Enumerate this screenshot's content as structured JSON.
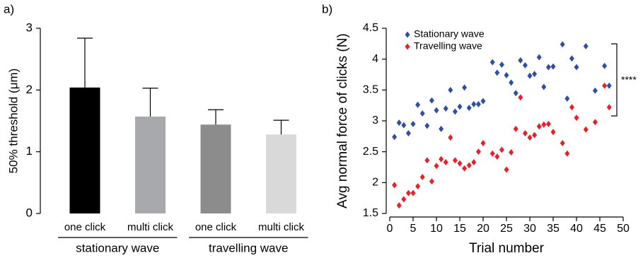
{
  "chart_data": [
    {
      "type": "bar",
      "panel_label": "a)",
      "ylabel": "50% threshold (μm)",
      "categories": [
        "one click",
        "multi click",
        "one click",
        "multi click"
      ],
      "group_labels": [
        "stationary wave",
        "travelling wave"
      ],
      "values": [
        2.04,
        1.57,
        1.44,
        1.28
      ],
      "errors": [
        0.8,
        0.46,
        0.24,
        0.23
      ],
      "colors": [
        "#000000",
        "#a7a9ac",
        "#8c8c8c",
        "#d9d9d9"
      ],
      "ylim": [
        0,
        3
      ],
      "yticks": [
        0,
        1,
        2,
        3
      ]
    },
    {
      "type": "scatter",
      "panel_label": "b)",
      "xlabel": "Trial number",
      "ylabel": "Avg normal force of clicks (N)",
      "xlim": [
        0,
        50
      ],
      "xticks": [
        0,
        5,
        10,
        15,
        20,
        25,
        30,
        35,
        40,
        45,
        50
      ],
      "ylim": [
        1.5,
        4.5
      ],
      "yticks": [
        1.5,
        2,
        2.5,
        3,
        3.5,
        4,
        4.5
      ],
      "legend": "upper left",
      "annotation": "****",
      "series": [
        {
          "name": "Stationary wave",
          "color": "#2e4fa3",
          "x": [
            1,
            2,
            3,
            4,
            5,
            6,
            7,
            8,
            9,
            10,
            11,
            12,
            13,
            14,
            15,
            16,
            17,
            18,
            19,
            20,
            22,
            23,
            24,
            25,
            26,
            27,
            28,
            29,
            30,
            31,
            32,
            33,
            34,
            35,
            37,
            38,
            39,
            40,
            42,
            44,
            46,
            47
          ],
          "values": [
            2.74,
            2.97,
            2.93,
            2.8,
            2.95,
            3.26,
            3.12,
            2.92,
            3.33,
            3.17,
            2.87,
            3.2,
            3.5,
            3.15,
            3.23,
            3.54,
            3.21,
            3.27,
            3.27,
            3.32,
            3.95,
            3.78,
            3.91,
            3.74,
            3.62,
            3.45,
            3.98,
            3.9,
            3.73,
            3.76,
            4.03,
            3.55,
            3.87,
            3.88,
            4.24,
            3.36,
            4.01,
            3.87,
            4.21,
            3.49,
            3.89,
            3.57
          ]
        },
        {
          "name": "Travelling wave",
          "color": "#e8202a",
          "x": [
            1,
            2,
            3,
            4,
            5,
            6,
            7,
            8,
            9,
            10,
            11,
            12,
            13,
            14,
            15,
            16,
            17,
            18,
            19,
            20,
            22,
            23,
            24,
            25,
            26,
            27,
            28,
            29,
            30,
            31,
            32,
            33,
            34,
            35,
            37,
            38,
            39,
            40,
            42,
            44,
            46,
            47
          ],
          "values": [
            1.96,
            1.63,
            1.73,
            1.83,
            1.83,
            1.94,
            2.09,
            2.36,
            2.02,
            2.27,
            2.38,
            2.33,
            2.73,
            2.36,
            2.31,
            2.23,
            2.28,
            2.33,
            2.5,
            2.64,
            2.47,
            2.42,
            2.53,
            2.21,
            2.49,
            2.87,
            3.38,
            2.8,
            2.73,
            2.77,
            2.91,
            2.94,
            2.95,
            2.82,
            2.64,
            2.47,
            3.22,
            3.05,
            2.86,
            2.98,
            3.57,
            3.22
          ]
        }
      ]
    }
  ]
}
